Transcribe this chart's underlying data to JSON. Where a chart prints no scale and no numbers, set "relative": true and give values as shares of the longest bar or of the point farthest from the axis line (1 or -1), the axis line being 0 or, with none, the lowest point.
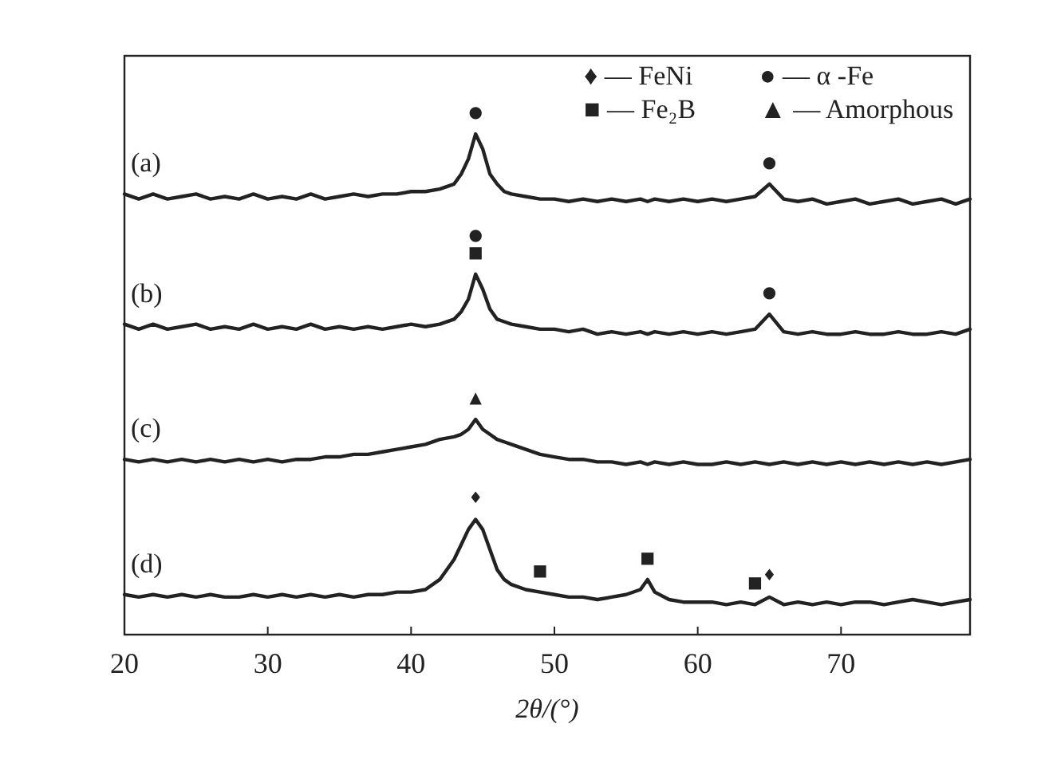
{
  "chart_data": {
    "type": "line",
    "relative": true,
    "xlabel": "2θ/(°)",
    "xlim": [
      20,
      79
    ],
    "xticks": [
      20,
      30,
      40,
      50,
      60,
      70
    ],
    "tick_labels": "x",
    "x": [
      20,
      21,
      22,
      23,
      24,
      25,
      26,
      27,
      28,
      29,
      30,
      31,
      32,
      33,
      34,
      35,
      36,
      37,
      38,
      39,
      40,
      41,
      42,
      43,
      43.5,
      44,
      44.5,
      45,
      45.5,
      46,
      46.5,
      47,
      48,
      49,
      50,
      51,
      52,
      53,
      54,
      55,
      56,
      56.5,
      57,
      58,
      59,
      60,
      61,
      62,
      63,
      64,
      65,
      66,
      67,
      68,
      69,
      70,
      71,
      72,
      73,
      74,
      75,
      76,
      77,
      78,
      79
    ],
    "series": [
      {
        "name": "(a)",
        "color": "#222222",
        "values": [
          0.88,
          0.87,
          0.88,
          0.87,
          0.875,
          0.88,
          0.87,
          0.875,
          0.87,
          0.88,
          0.87,
          0.875,
          0.87,
          0.88,
          0.87,
          0.875,
          0.88,
          0.875,
          0.88,
          0.88,
          0.885,
          0.885,
          0.89,
          0.9,
          0.92,
          0.95,
          1.0,
          0.97,
          0.92,
          0.9,
          0.885,
          0.88,
          0.875,
          0.87,
          0.87,
          0.865,
          0.87,
          0.865,
          0.87,
          0.865,
          0.87,
          0.865,
          0.87,
          0.865,
          0.87,
          0.865,
          0.87,
          0.865,
          0.87,
          0.875,
          0.9,
          0.87,
          0.865,
          0.87,
          0.86,
          0.865,
          0.87,
          0.86,
          0.865,
          0.87,
          0.86,
          0.865,
          0.87,
          0.86,
          0.87
        ]
      },
      {
        "name": "(b)",
        "color": "#222222",
        "values": [
          0.62,
          0.61,
          0.62,
          0.61,
          0.615,
          0.62,
          0.61,
          0.615,
          0.61,
          0.62,
          0.61,
          0.615,
          0.61,
          0.62,
          0.61,
          0.615,
          0.61,
          0.615,
          0.61,
          0.615,
          0.62,
          0.615,
          0.62,
          0.63,
          0.645,
          0.67,
          0.72,
          0.69,
          0.65,
          0.63,
          0.625,
          0.62,
          0.615,
          0.61,
          0.61,
          0.605,
          0.61,
          0.6,
          0.605,
          0.6,
          0.605,
          0.6,
          0.605,
          0.6,
          0.605,
          0.6,
          0.605,
          0.6,
          0.605,
          0.61,
          0.64,
          0.605,
          0.6,
          0.605,
          0.6,
          0.6,
          0.605,
          0.6,
          0.6,
          0.605,
          0.6,
          0.6,
          0.605,
          0.6,
          0.61
        ]
      },
      {
        "name": "(c)",
        "color": "#222222",
        "values": [
          0.35,
          0.345,
          0.35,
          0.345,
          0.35,
          0.345,
          0.35,
          0.345,
          0.35,
          0.345,
          0.35,
          0.345,
          0.35,
          0.35,
          0.355,
          0.355,
          0.36,
          0.36,
          0.365,
          0.37,
          0.375,
          0.38,
          0.39,
          0.395,
          0.4,
          0.41,
          0.43,
          0.41,
          0.4,
          0.39,
          0.385,
          0.38,
          0.37,
          0.36,
          0.355,
          0.35,
          0.35,
          0.345,
          0.345,
          0.34,
          0.345,
          0.34,
          0.345,
          0.34,
          0.345,
          0.34,
          0.34,
          0.345,
          0.34,
          0.345,
          0.34,
          0.345,
          0.34,
          0.345,
          0.34,
          0.345,
          0.34,
          0.345,
          0.34,
          0.345,
          0.34,
          0.345,
          0.34,
          0.345,
          0.35
        ]
      },
      {
        "name": "(d)",
        "color": "#222222",
        "values": [
          0.08,
          0.075,
          0.08,
          0.075,
          0.08,
          0.075,
          0.08,
          0.075,
          0.075,
          0.08,
          0.075,
          0.08,
          0.075,
          0.08,
          0.075,
          0.08,
          0.075,
          0.08,
          0.08,
          0.085,
          0.085,
          0.09,
          0.11,
          0.15,
          0.18,
          0.21,
          0.23,
          0.21,
          0.17,
          0.13,
          0.11,
          0.1,
          0.09,
          0.085,
          0.08,
          0.075,
          0.075,
          0.07,
          0.075,
          0.08,
          0.09,
          0.11,
          0.085,
          0.07,
          0.065,
          0.065,
          0.065,
          0.06,
          0.065,
          0.06,
          0.075,
          0.06,
          0.065,
          0.06,
          0.065,
          0.06,
          0.065,
          0.065,
          0.06,
          0.065,
          0.07,
          0.065,
          0.06,
          0.065,
          0.07
        ]
      }
    ],
    "annotations": [
      "♦ — FeNi",
      "● — α -Fe",
      "■ — Fe₂B",
      "▲ — Amorphous",
      {
        "text": "●",
        "x": 44.5,
        "y": 1.0
      },
      {
        "text": "●",
        "x": 65,
        "y": 0.9
      },
      {
        "text": "■",
        "x": 44.5,
        "y": 0.72
      },
      {
        "text": "●",
        "x": 44.5,
        "y": 0.72
      },
      {
        "text": "●",
        "x": 65,
        "y": 0.64
      },
      {
        "text": "▲",
        "x": 44.5,
        "y": 0.43
      },
      {
        "text": "♦",
        "x": 44.5,
        "y": 0.23
      },
      {
        "text": "■",
        "x": 49,
        "y": 0.085
      },
      {
        "text": "■",
        "x": 56.5,
        "y": 0.11
      },
      {
        "text": "■",
        "x": 64,
        "y": 0.06
      },
      {
        "text": "♦",
        "x": 65,
        "y": 0.075
      }
    ]
  }
}
